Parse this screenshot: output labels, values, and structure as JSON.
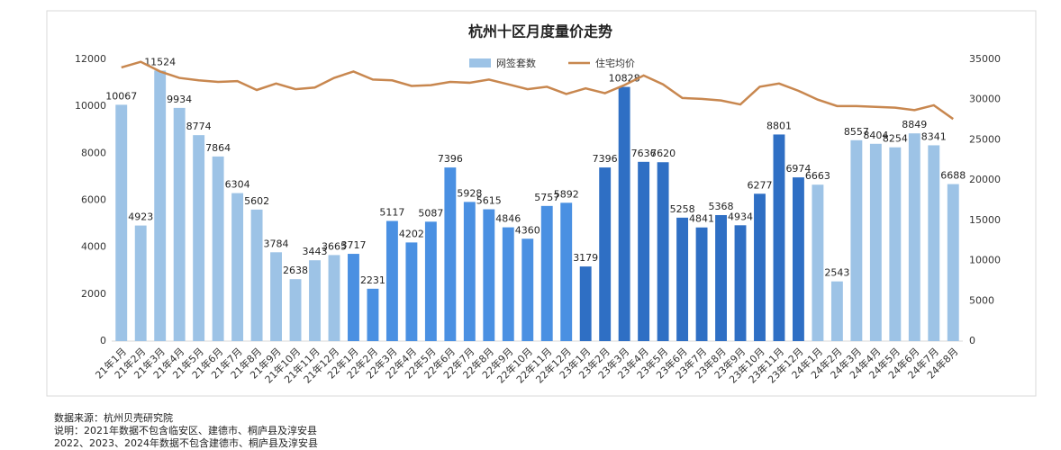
{
  "chart_data": {
    "type": "bar-line",
    "title": "杭州十区月度量价走势",
    "categories": [
      "21年1月",
      "21年2月",
      "21年3月",
      "21年4月",
      "21年5月",
      "21年6月",
      "21年7月",
      "21年8月",
      "21年9月",
      "21年10月",
      "21年11月",
      "21年12月",
      "22年1月",
      "22年2月",
      "22年3月",
      "22年4月",
      "22年5月",
      "22年6月",
      "22年7月",
      "22年8月",
      "22年9月",
      "22年10月",
      "22年11月",
      "22年12月",
      "23年1月",
      "23年2月",
      "23年3月",
      "23年4月",
      "23年5月",
      "23年6月",
      "23年7月",
      "23年8月",
      "23年9月",
      "23年10月",
      "23年11月",
      "23年12月",
      "24年1月",
      "24年2月",
      "24年3月",
      "24年4月",
      "24年5月",
      "24年6月",
      "24年7月",
      "24年8月"
    ],
    "series": [
      {
        "name": "网签套数",
        "type": "bar",
        "color": "#9dc3e6",
        "colors": [
          "#9dc3e6",
          "#9dc3e6",
          "#9dc3e6",
          "#9dc3e6",
          "#9dc3e6",
          "#9dc3e6",
          "#9dc3e6",
          "#9dc3e6",
          "#9dc3e6",
          "#9dc3e6",
          "#9dc3e6",
          "#9dc3e6",
          "#4a90e2",
          "#4a90e2",
          "#4a90e2",
          "#4a90e2",
          "#4a90e2",
          "#4a90e2",
          "#4a90e2",
          "#4a90e2",
          "#4a90e2",
          "#4a90e2",
          "#4a90e2",
          "#4a90e2",
          "#2f6fc4",
          "#2f6fc4",
          "#2f6fc4",
          "#2f6fc4",
          "#2f6fc4",
          "#2f6fc4",
          "#2f6fc4",
          "#2f6fc4",
          "#2f6fc4",
          "#2f6fc4",
          "#2f6fc4",
          "#2f6fc4",
          "#9dc3e6",
          "#9dc3e6",
          "#9dc3e6",
          "#9dc3e6",
          "#9dc3e6",
          "#9dc3e6",
          "#9dc3e6",
          "#9dc3e6"
        ],
        "values": [
          10067,
          4923,
          11524,
          9934,
          8774,
          7864,
          6304,
          5602,
          3784,
          2638,
          3443,
          3665,
          3717,
          2231,
          5117,
          4202,
          5087,
          7396,
          5928,
          5615,
          4846,
          4360,
          5757,
          5892,
          3179,
          7396,
          10828,
          7636,
          7620,
          5258,
          4841,
          5368,
          4934,
          6277,
          8801,
          6974,
          6663,
          2543,
          8557,
          8404,
          8254,
          8849,
          8341,
          6688
        ]
      },
      {
        "name": "住宅均价",
        "type": "line",
        "axis": "y2",
        "color": "#c8874f",
        "values": [
          34000,
          34700,
          33500,
          32700,
          32400,
          32200,
          32300,
          31200,
          32000,
          31300,
          31500,
          32700,
          33500,
          32500,
          32400,
          31700,
          31800,
          32200,
          32100,
          32500,
          31900,
          31300,
          31600,
          30700,
          31400,
          30800,
          31800,
          33000,
          31900,
          30200,
          30100,
          29900,
          29400,
          31600,
          32000,
          31100,
          30000,
          29200,
          29200,
          29100,
          29000,
          28700,
          29300,
          27600
        ]
      }
    ],
    "ylim": [
      0,
      12000
    ],
    "yticks": [
      0,
      2000,
      4000,
      6000,
      8000,
      10000,
      12000
    ],
    "y2lim": [
      0,
      35000
    ],
    "y2ticks": [
      0,
      5000,
      10000,
      15000,
      20000,
      25000,
      30000,
      35000
    ],
    "legend": "top",
    "notes": [
      "数据来源：杭州贝壳研究院",
      "说明：2021年数据不包含临安区、建德市、桐庐县及淳安县",
      "2022、2023、2024年数据不包含建德市、桐庐县及淳安县"
    ]
  }
}
